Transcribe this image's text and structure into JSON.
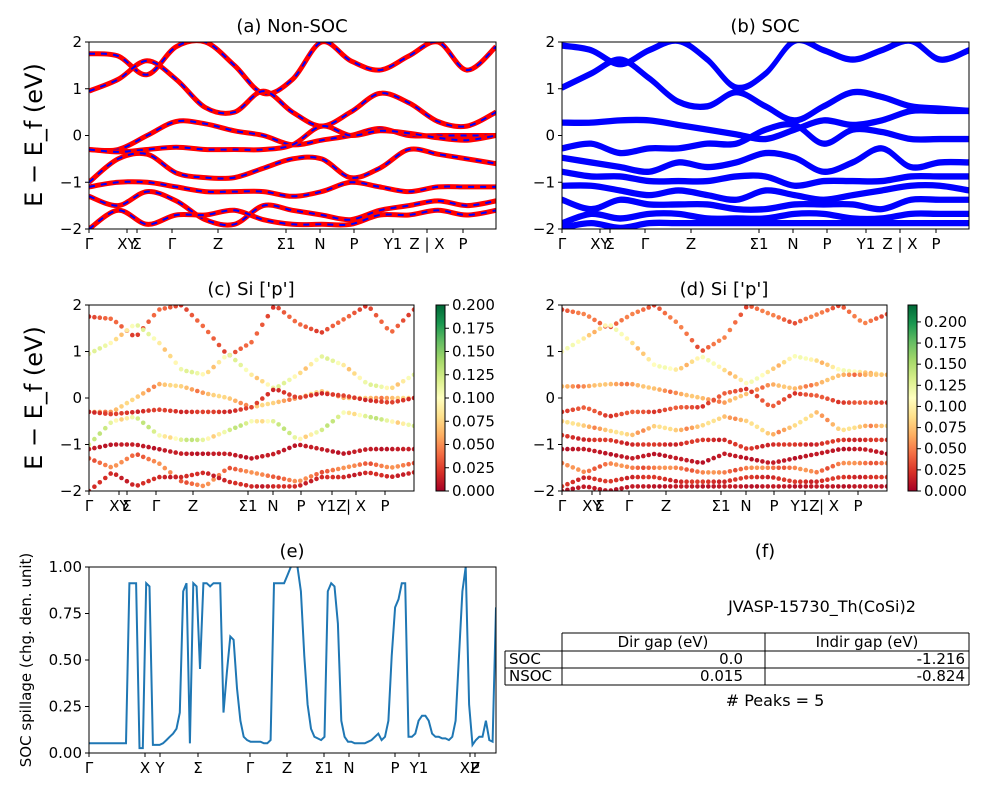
{
  "chart_data": [
    {
      "id": "a",
      "type": "line",
      "title": "(a) Non-SOC",
      "ylabel": "E − E_f (eV)",
      "ylim": [
        -2,
        2
      ],
      "yticks": [
        "−2",
        "−1",
        "0",
        "1",
        "2"
      ],
      "xticks": [
        "Γ",
        "XY",
        "Σ",
        "Γ",
        "Z",
        "Σ1",
        "N",
        "P",
        "Y1",
        "Z | X",
        "P"
      ],
      "colors": {
        "main": "#ff0000",
        "overlay": "#0000ff"
      },
      "series": [
        {
          "values": [
            1.75,
            1.7,
            1.3,
            1.9,
            2.0,
            1.5,
            0.9,
            1.2,
            2.0,
            1.6,
            1.4,
            1.7,
            2.0,
            1.4,
            1.9
          ]
        },
        {
          "values": [
            0.95,
            1.2,
            1.6,
            1.2,
            0.6,
            0.5,
            0.95,
            0.5,
            0.2,
            0.5,
            0.9,
            0.7,
            0.3,
            0.2,
            0.5
          ]
        },
        {
          "values": [
            -0.3,
            -0.3,
            0.0,
            0.3,
            0.25,
            0.1,
            0.0,
            -0.2,
            -0.1,
            0.0,
            0.15,
            0.0,
            0.0,
            0.0,
            0.0
          ]
        },
        {
          "values": [
            -0.3,
            -0.35,
            -0.3,
            -0.25,
            -0.3,
            -0.3,
            -0.3,
            -0.2,
            0.2,
            0.0,
            0.1,
            0.05,
            -0.05,
            -0.1,
            0.0
          ]
        },
        {
          "values": [
            -1.0,
            -0.5,
            -0.4,
            -0.8,
            -0.9,
            -0.9,
            -0.7,
            -0.5,
            -0.5,
            -0.9,
            -0.7,
            -0.3,
            -0.4,
            -0.5,
            -0.6
          ]
        },
        {
          "values": [
            -1.1,
            -1.0,
            -1.0,
            -1.1,
            -1.2,
            -1.2,
            -1.2,
            -1.3,
            -1.2,
            -1.0,
            -1.1,
            -1.2,
            -1.1,
            -1.1,
            -1.1
          ]
        },
        {
          "values": [
            -1.3,
            -1.5,
            -1.2,
            -1.4,
            -1.8,
            -1.9,
            -1.5,
            -1.6,
            -1.7,
            -1.8,
            -1.6,
            -1.5,
            -1.4,
            -1.5,
            -1.4
          ]
        },
        {
          "values": [
            -2.0,
            -1.6,
            -1.9,
            -1.7,
            -1.7,
            -1.6,
            -1.8,
            -1.9,
            -1.9,
            -1.9,
            -1.7,
            -1.7,
            -1.6,
            -1.7,
            -1.6
          ]
        }
      ]
    },
    {
      "id": "b",
      "type": "line",
      "title": "(b) SOC",
      "ylim": [
        -2,
        2
      ],
      "yticks": [
        "−2",
        "−1",
        "0",
        "1",
        "2"
      ],
      "xticks": [
        "Γ",
        "XY",
        "Σ",
        "Γ",
        "Z",
        "Σ1",
        "N",
        "P",
        "Y1",
        "Z | X",
        "P"
      ],
      "colors": {
        "main": "#0000ff"
      },
      "series": [
        {
          "values": [
            1.9,
            1.8,
            1.5,
            1.8,
            2.0,
            1.6,
            1.0,
            1.3,
            2.0,
            1.8,
            1.6,
            1.8,
            2.0,
            1.6,
            1.8
          ]
        },
        {
          "values": [
            1.0,
            1.3,
            1.6,
            1.2,
            0.7,
            0.6,
            0.9,
            0.6,
            0.3,
            0.6,
            0.9,
            0.8,
            0.6,
            0.55,
            0.5
          ]
        },
        {
          "values": [
            0.25,
            0.25,
            0.3,
            0.3,
            0.2,
            0.1,
            0.0,
            -0.1,
            0.1,
            0.3,
            0.2,
            0.3,
            0.5,
            0.5,
            0.5
          ]
        },
        {
          "values": [
            -0.3,
            -0.2,
            -0.4,
            -0.3,
            -0.3,
            -0.2,
            -0.2,
            0.1,
            0.2,
            -0.2,
            0.1,
            0.05,
            -0.1,
            -0.1,
            -0.1
          ]
        },
        {
          "values": [
            -0.5,
            -0.6,
            -0.7,
            -0.8,
            -0.6,
            -0.7,
            -0.6,
            -0.4,
            -0.5,
            -0.8,
            -0.6,
            -0.3,
            -0.7,
            -0.6,
            -0.6
          ]
        },
        {
          "values": [
            -0.8,
            -0.9,
            -0.9,
            -1.0,
            -1.0,
            -1.0,
            -0.9,
            -0.9,
            -1.1,
            -1.0,
            -1.0,
            -1.0,
            -0.9,
            -0.9,
            -0.9
          ]
        },
        {
          "values": [
            -1.1,
            -1.1,
            -1.2,
            -1.3,
            -1.2,
            -1.3,
            -1.4,
            -1.2,
            -1.3,
            -1.4,
            -1.3,
            -1.2,
            -1.1,
            -1.1,
            -1.2
          ]
        },
        {
          "values": [
            -1.4,
            -1.6,
            -1.4,
            -1.5,
            -1.5,
            -1.5,
            -1.6,
            -1.6,
            -1.5,
            -1.5,
            -1.5,
            -1.6,
            -1.4,
            -1.4,
            -1.4
          ]
        },
        {
          "values": [
            -1.9,
            -1.7,
            -1.8,
            -1.7,
            -1.7,
            -1.8,
            -1.8,
            -1.8,
            -1.7,
            -1.7,
            -1.8,
            -1.8,
            -1.7,
            -1.7,
            -1.7
          ]
        },
        {
          "values": [
            -2.0,
            -1.9,
            -2.0,
            -1.9,
            -1.9,
            -1.9,
            -1.9,
            -1.9,
            -1.9,
            -1.9,
            -1.9,
            -1.9,
            -1.9,
            -1.9,
            -1.9
          ]
        }
      ]
    },
    {
      "id": "c",
      "type": "scatter",
      "title": "(c)  Si ['p']",
      "ylabel": "E − E_f (eV)",
      "ylim": [
        -2,
        2
      ],
      "yticks": [
        "−2",
        "−1",
        "0",
        "1",
        "2"
      ],
      "xticks": [
        "Γ",
        "XY",
        "Σ",
        "Γ",
        "Z",
        "Σ1",
        "N",
        "P",
        "Y1Z",
        "| X",
        "P"
      ],
      "colorbar": {
        "ticks": [
          "0.200",
          "0.175",
          "0.150",
          "0.125",
          "0.100",
          "0.075",
          "0.050",
          "0.025",
          "0.000"
        ],
        "max": 0.2
      },
      "colormap": [
        "#a50026",
        "#d73027",
        "#f46d43",
        "#fdae61",
        "#fee08b",
        "#ffffbf",
        "#d9ef8b",
        "#a6d96a",
        "#66bd63",
        "#1a9850",
        "#006837"
      ],
      "series": [
        {
          "values": [
            1.75,
            1.7,
            1.3,
            1.9,
            2.0,
            1.5,
            0.9,
            1.2,
            2.0,
            1.6,
            1.4,
            1.7,
            2.0,
            1.4,
            1.9
          ],
          "weight": 0.03
        },
        {
          "values": [
            0.95,
            1.2,
            1.6,
            1.2,
            0.6,
            0.5,
            0.95,
            0.5,
            0.2,
            0.5,
            0.9,
            0.7,
            0.3,
            0.2,
            0.5
          ],
          "weight": 0.09
        },
        {
          "values": [
            -0.3,
            -0.3,
            0.0,
            0.3,
            0.25,
            0.1,
            0.0,
            -0.2,
            -0.1,
            0.0,
            0.15,
            0.0,
            0.0,
            0.0,
            0.0
          ],
          "weight": 0.06
        },
        {
          "values": [
            -0.3,
            -0.35,
            -0.3,
            -0.25,
            -0.3,
            -0.3,
            -0.3,
            -0.2,
            0.2,
            0.0,
            0.1,
            0.05,
            -0.05,
            -0.1,
            0.0
          ],
          "weight": 0.02
        },
        {
          "values": [
            -1.0,
            -0.5,
            -0.4,
            -0.8,
            -0.9,
            -0.9,
            -0.7,
            -0.5,
            -0.5,
            -0.9,
            -0.7,
            -0.3,
            -0.4,
            -0.5,
            -0.6
          ],
          "weight": 0.1
        },
        {
          "values": [
            -1.1,
            -1.0,
            -1.0,
            -1.1,
            -1.2,
            -1.2,
            -1.2,
            -1.3,
            -1.2,
            -1.0,
            -1.1,
            -1.2,
            -1.1,
            -1.1,
            -1.1
          ],
          "weight": 0.01
        },
        {
          "values": [
            -1.3,
            -1.5,
            -1.2,
            -1.4,
            -1.8,
            -1.9,
            -1.5,
            -1.6,
            -1.7,
            -1.8,
            -1.6,
            -1.5,
            -1.4,
            -1.5,
            -1.4
          ],
          "weight": 0.04
        },
        {
          "values": [
            -2.0,
            -1.6,
            -1.9,
            -1.7,
            -1.7,
            -1.6,
            -1.8,
            -1.9,
            -1.9,
            -1.9,
            -1.7,
            -1.7,
            -1.6,
            -1.7,
            -1.6
          ],
          "weight": 0.015
        }
      ]
    },
    {
      "id": "d",
      "type": "scatter",
      "title": "(d) Si ['p']",
      "ylim": [
        -2,
        2
      ],
      "yticks": [
        "−2",
        "−1",
        "0",
        "1",
        "2"
      ],
      "xticks": [
        "Γ",
        "XY",
        "Σ",
        "Γ",
        "Z",
        "Σ1",
        "N",
        "P",
        "Y1Z",
        "| X",
        "P"
      ],
      "colorbar": {
        "ticks": [
          "0.200",
          "0.175",
          "0.150",
          "0.125",
          "0.100",
          "0.075",
          "0.050",
          "0.025",
          "0.000"
        ],
        "max": 0.22
      },
      "colormap": [
        "#a50026",
        "#d73027",
        "#f46d43",
        "#fdae61",
        "#fee08b",
        "#ffffbf",
        "#d9ef8b",
        "#a6d96a",
        "#66bd63",
        "#1a9850",
        "#006837"
      ],
      "series": [
        {
          "values": [
            1.9,
            1.8,
            1.5,
            1.8,
            2.0,
            1.6,
            1.0,
            1.3,
            2.0,
            1.8,
            1.6,
            1.8,
            2.0,
            1.6,
            1.8
          ],
          "weight": 0.04
        },
        {
          "values": [
            1.0,
            1.3,
            1.6,
            1.2,
            0.7,
            0.6,
            0.9,
            0.6,
            0.3,
            0.6,
            0.9,
            0.8,
            0.6,
            0.55,
            0.5
          ],
          "weight": 0.09
        },
        {
          "values": [
            0.25,
            0.25,
            0.3,
            0.3,
            0.2,
            0.1,
            0.0,
            -0.1,
            0.1,
            0.3,
            0.2,
            0.3,
            0.5,
            0.5,
            0.5
          ],
          "weight": 0.06
        },
        {
          "values": [
            -0.3,
            -0.2,
            -0.4,
            -0.3,
            -0.3,
            -0.2,
            -0.2,
            0.1,
            0.2,
            -0.2,
            0.1,
            0.05,
            -0.1,
            -0.1,
            -0.1
          ],
          "weight": 0.03
        },
        {
          "values": [
            -0.5,
            -0.6,
            -0.7,
            -0.8,
            -0.6,
            -0.7,
            -0.6,
            -0.4,
            -0.5,
            -0.8,
            -0.6,
            -0.3,
            -0.7,
            -0.6,
            -0.6
          ],
          "weight": 0.07
        },
        {
          "values": [
            -0.8,
            -0.9,
            -0.9,
            -1.0,
            -1.0,
            -1.0,
            -0.9,
            -0.9,
            -1.1,
            -1.0,
            -1.0,
            -1.0,
            -0.9,
            -0.9,
            -0.9
          ],
          "weight": 0.02
        },
        {
          "values": [
            -1.1,
            -1.1,
            -1.2,
            -1.3,
            -1.2,
            -1.3,
            -1.4,
            -1.2,
            -1.3,
            -1.4,
            -1.3,
            -1.2,
            -1.1,
            -1.1,
            -1.2
          ],
          "weight": 0.01
        },
        {
          "values": [
            -1.4,
            -1.6,
            -1.4,
            -1.5,
            -1.5,
            -1.5,
            -1.6,
            -1.6,
            -1.5,
            -1.5,
            -1.5,
            -1.6,
            -1.4,
            -1.4,
            -1.4
          ],
          "weight": 0.045
        },
        {
          "values": [
            -1.9,
            -1.7,
            -1.8,
            -1.7,
            -1.7,
            -1.8,
            -1.8,
            -1.8,
            -1.7,
            -1.7,
            -1.8,
            -1.8,
            -1.7,
            -1.7,
            -1.7
          ],
          "weight": 0.02
        },
        {
          "values": [
            -2.0,
            -1.9,
            -2.0,
            -1.9,
            -1.9,
            -1.9,
            -1.9,
            -1.9,
            -1.9,
            -1.9,
            -1.9,
            -1.9,
            -1.9,
            -1.9,
            -1.9
          ],
          "weight": 0.01
        }
      ]
    },
    {
      "id": "e",
      "type": "line",
      "title": "(e)",
      "ylabel": "SOC spillage (chg. den. unit)",
      "ylim": [
        0,
        1.15
      ],
      "yticks": [
        "0.00",
        "0.25",
        "0.50",
        "0.75",
        "1.00"
      ],
      "xticks": [
        "Γ",
        "X",
        "Y",
        "Σ",
        "Γ",
        "Z",
        "Σ1",
        "N",
        "P",
        "Y1",
        "XZ",
        "P"
      ],
      "color": "#1f77b4",
      "series": [
        {
          "values": [
            0.06,
            0.06,
            0.06,
            0.06,
            0.06,
            0.06,
            0.06,
            0.06,
            0.06,
            0.06,
            0.06,
            0.06,
            1.05,
            1.05,
            1.05,
            0.03,
            0.03,
            1.05,
            1.03,
            0.05,
            0.05,
            0.05,
            0.06,
            0.08,
            0.1,
            0.12,
            0.15,
            0.25,
            1.0,
            1.05,
            0.06,
            1.05,
            1.03,
            0.52,
            1.05,
            1.05,
            1.03,
            1.05,
            1.05,
            1.05,
            0.25,
            0.5,
            0.72,
            0.7,
            0.4,
            0.2,
            0.1,
            0.08,
            0.07,
            0.07,
            0.07,
            0.07,
            0.06,
            0.06,
            0.08,
            1.05,
            1.05,
            1.05,
            1.05,
            1.1,
            1.15,
            1.2,
            1.15,
            1.0,
            0.6,
            0.3,
            0.15,
            0.1,
            0.09,
            0.08,
            0.1,
            1.0,
            1.05,
            1.03,
            0.8,
            0.2,
            0.1,
            0.07,
            0.07,
            0.06,
            0.06,
            0.06,
            0.06,
            0.07,
            0.08,
            0.1,
            0.12,
            0.08,
            0.1,
            0.2,
            0.6,
            0.9,
            0.95,
            1.05,
            1.05,
            0.1,
            0.1,
            0.12,
            0.2,
            0.23,
            0.23,
            0.2,
            0.12,
            0.1,
            0.1,
            0.09,
            0.09,
            0.08,
            0.1,
            0.2,
            0.6,
            1.0,
            1.15,
            0.3,
            0.05,
            0.08,
            0.1,
            0.1,
            0.2,
            0.08,
            0.07,
            0.9
          ]
        }
      ]
    }
  ],
  "panel_f": {
    "title": "(f)",
    "material": "JVASP-15730_Th(CoSi)2",
    "columns": [
      "Dir gap (eV)",
      "Indir gap (eV)"
    ],
    "rows": [
      {
        "label": "SOC",
        "dir": "0.0",
        "indir": "-1.216"
      },
      {
        "label": "NSOC",
        "dir": "0.015",
        "indir": "-0.824"
      }
    ],
    "peaks": "# Peaks = 5"
  }
}
